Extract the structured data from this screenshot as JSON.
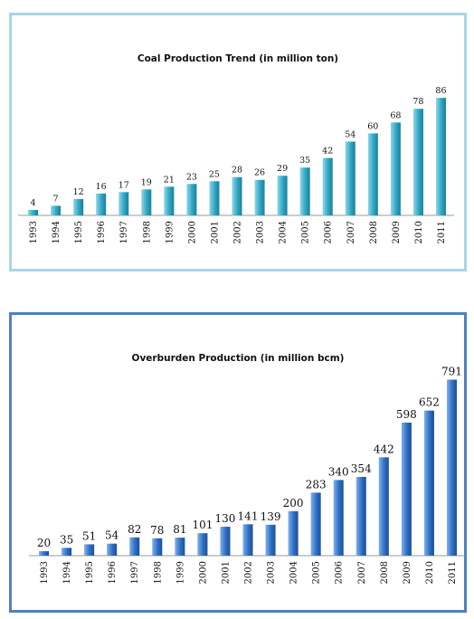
{
  "chart_data": [
    {
      "type": "bar",
      "title": "Coal Production Trend (in million ton)",
      "categories": [
        "1993",
        "1994",
        "1995",
        "1996",
        "1997",
        "1998",
        "1999",
        "2000",
        "2001",
        "2002",
        "2003",
        "2004",
        "2005",
        "2006",
        "2007",
        "2008",
        "2009",
        "2010",
        "2011"
      ],
      "values": [
        4,
        7,
        12,
        16,
        17,
        19,
        21,
        23,
        25,
        28,
        26,
        29,
        35,
        42,
        54,
        60,
        68,
        78,
        86
      ],
      "xlabel": "",
      "ylabel": "",
      "ylim": [
        0,
        100
      ],
      "grid": false,
      "legend": "none",
      "bar_color": "#2ea7c4",
      "bar_color_light": "#8fd6e8",
      "bar_color_dark": "#1b7f99",
      "border_color": "#a9d5e6"
    },
    {
      "type": "bar",
      "title": "Overburden Production (in million bcm)",
      "categories": [
        "1993",
        "1994",
        "1995",
        "1996",
        "1997",
        "1998",
        "1999",
        "2000",
        "2001",
        "2002",
        "2003",
        "2004",
        "2005",
        "2006",
        "2007",
        "2008",
        "2009",
        "2010",
        "2011"
      ],
      "values": [
        20,
        35,
        51,
        54,
        82,
        78,
        81,
        101,
        130,
        141,
        139,
        200,
        283,
        340,
        354,
        442,
        598,
        652,
        791
      ],
      "xlabel": "",
      "ylabel": "",
      "ylim": [
        0,
        850
      ],
      "grid": false,
      "legend": "none",
      "bar_color": "#2f6fc4",
      "bar_color_light": "#7fb0ee",
      "bar_color_dark": "#1c4f96",
      "border_color": "#4f81bd"
    }
  ]
}
